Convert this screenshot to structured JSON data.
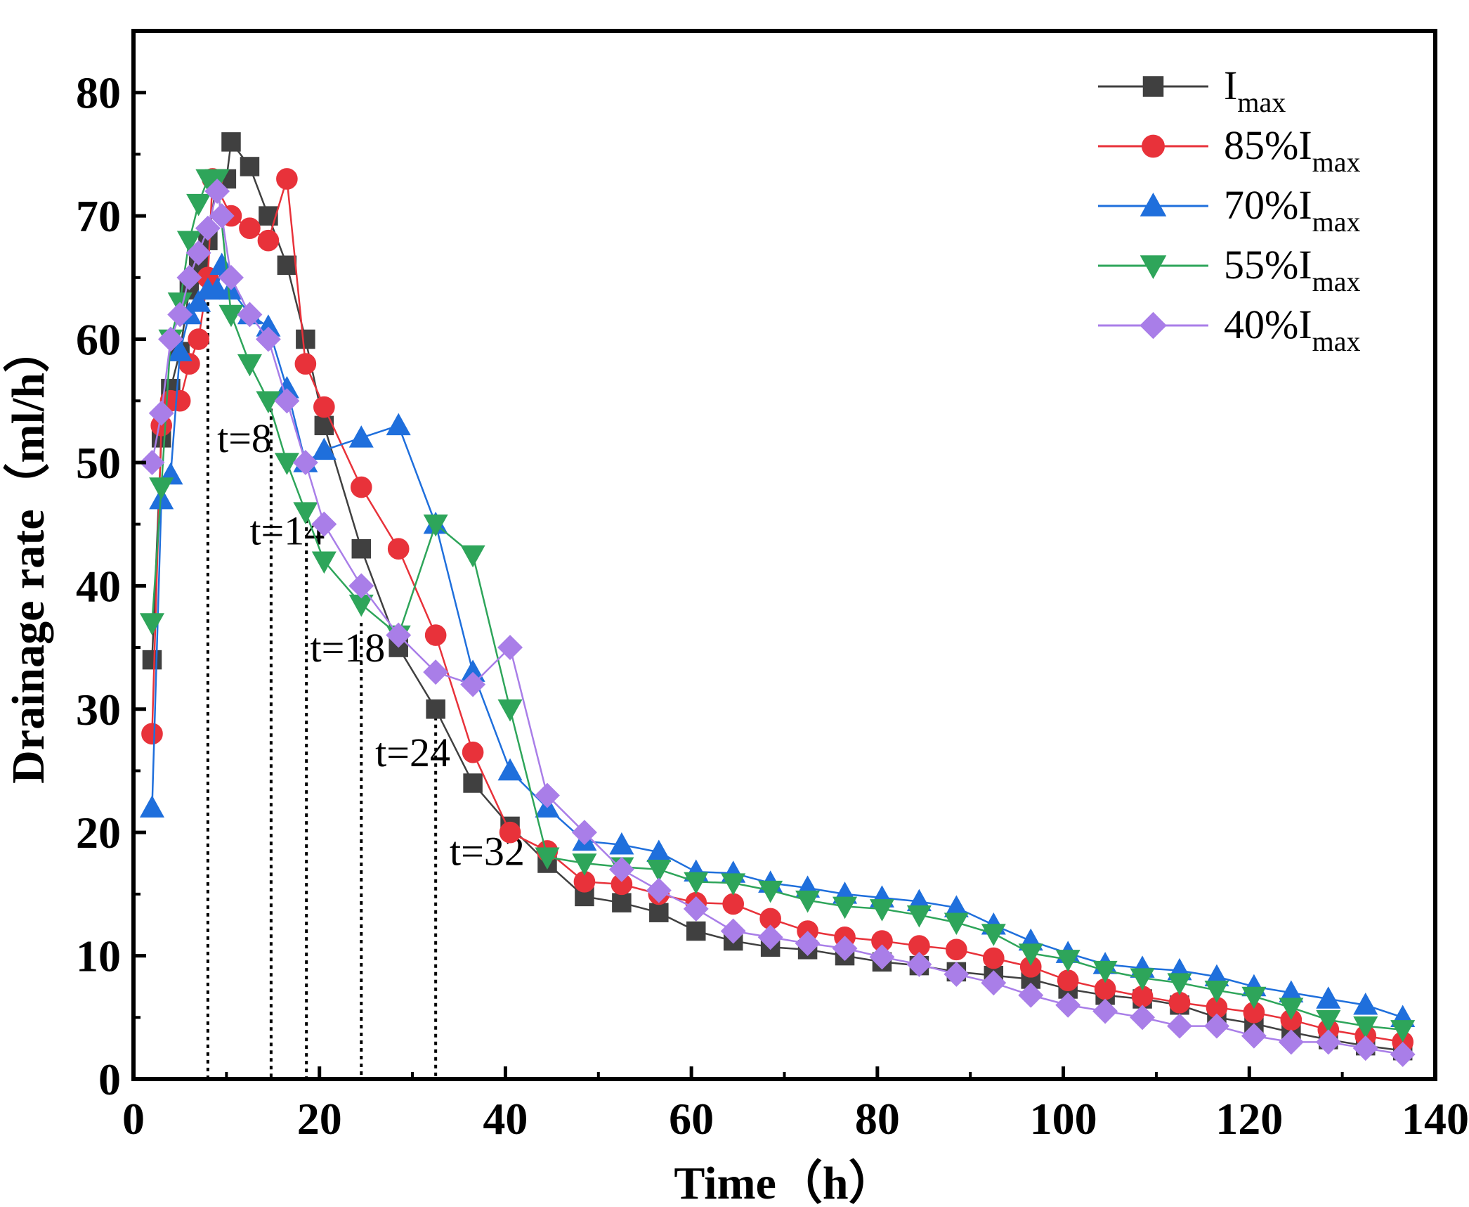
{
  "chart_data": {
    "type": "line",
    "xlabel": "Time（h）",
    "ylabel": "Drainage rate（ml/h）",
    "xlim": [
      0,
      140
    ],
    "ylim": [
      0,
      85
    ],
    "xticks": [
      0,
      20,
      40,
      60,
      80,
      100,
      120,
      140
    ],
    "yticks": [
      0,
      10,
      20,
      30,
      40,
      50,
      60,
      70,
      80
    ],
    "grid": false,
    "legend_position": "top-right",
    "series": [
      {
        "name": "I",
        "name_sub": "max",
        "color": "#404040",
        "marker": "square",
        "points": [
          [
            2,
            34
          ],
          [
            3,
            52
          ],
          [
            4,
            56
          ],
          [
            5,
            59
          ],
          [
            6,
            64
          ],
          [
            7,
            66
          ],
          [
            8,
            68
          ],
          [
            9,
            73
          ],
          [
            10,
            73
          ],
          [
            10.5,
            76
          ],
          [
            12.5,
            74
          ],
          [
            14.5,
            70
          ],
          [
            16.5,
            66
          ],
          [
            18.5,
            60
          ],
          [
            20.5,
            53
          ],
          [
            24.5,
            43
          ],
          [
            28.5,
            35
          ],
          [
            32.5,
            30
          ],
          [
            36.5,
            24
          ],
          [
            40.5,
            20.5
          ],
          [
            44.5,
            17.5
          ],
          [
            48.5,
            14.8
          ],
          [
            52.5,
            14.3
          ],
          [
            56.5,
            13.5
          ],
          [
            60.5,
            12
          ],
          [
            64.5,
            11.2
          ],
          [
            68.5,
            10.7
          ],
          [
            72.5,
            10.5
          ],
          [
            76.5,
            10
          ],
          [
            80.5,
            9.5
          ],
          [
            84.5,
            9.2
          ],
          [
            88.5,
            8.7
          ],
          [
            92.5,
            8.4
          ],
          [
            96.5,
            8.1
          ],
          [
            100.5,
            7.3
          ],
          [
            104.5,
            6.8
          ],
          [
            108.5,
            6.5
          ],
          [
            112.5,
            6
          ],
          [
            116.5,
            5
          ],
          [
            120.5,
            4.5
          ],
          [
            124.5,
            3.8
          ],
          [
            128.5,
            3.2
          ],
          [
            132.5,
            2.7
          ],
          [
            136.5,
            2.3
          ]
        ]
      },
      {
        "name": "85%I",
        "name_sub": "max",
        "color": "#e8323a",
        "marker": "circle",
        "points": [
          [
            2,
            28
          ],
          [
            3,
            53
          ],
          [
            4,
            55
          ],
          [
            5,
            55
          ],
          [
            6,
            58
          ],
          [
            7,
            60
          ],
          [
            8,
            65
          ],
          [
            8.5,
            73
          ],
          [
            10.5,
            70
          ],
          [
            12.5,
            69
          ],
          [
            14.5,
            68
          ],
          [
            16.5,
            73
          ],
          [
            18.5,
            58
          ],
          [
            20.5,
            54.5
          ],
          [
            24.5,
            48
          ],
          [
            28.5,
            43
          ],
          [
            32.5,
            36
          ],
          [
            36.5,
            26.5
          ],
          [
            40.5,
            20
          ],
          [
            44.5,
            18.5
          ],
          [
            48.5,
            16
          ],
          [
            52.5,
            15.8
          ],
          [
            56.5,
            15
          ],
          [
            60.5,
            14.3
          ],
          [
            64.5,
            14.2
          ],
          [
            68.5,
            13
          ],
          [
            72.5,
            12
          ],
          [
            76.5,
            11.5
          ],
          [
            80.5,
            11.2
          ],
          [
            84.5,
            10.8
          ],
          [
            88.5,
            10.5
          ],
          [
            92.5,
            9.8
          ],
          [
            96.5,
            9.1
          ],
          [
            100.5,
            8
          ],
          [
            104.5,
            7.3
          ],
          [
            108.5,
            6.7
          ],
          [
            112.5,
            6.2
          ],
          [
            116.5,
            5.8
          ],
          [
            120.5,
            5.4
          ],
          [
            124.5,
            4.8
          ],
          [
            128.5,
            4
          ],
          [
            132.5,
            3.5
          ],
          [
            136.5,
            3
          ]
        ]
      },
      {
        "name": "70%I",
        "name_sub": "max",
        "color": "#1f6fdc",
        "marker": "triangle-up",
        "points": [
          [
            2,
            22
          ],
          [
            3,
            47
          ],
          [
            4,
            49
          ],
          [
            5,
            59
          ],
          [
            6,
            62
          ],
          [
            7,
            63
          ],
          [
            8,
            64
          ],
          [
            9,
            64
          ],
          [
            9.5,
            66
          ],
          [
            10.5,
            64
          ],
          [
            12.5,
            62
          ],
          [
            14.5,
            61
          ],
          [
            16.5,
            56
          ],
          [
            18.5,
            50
          ],
          [
            20.5,
            51
          ],
          [
            24.5,
            52
          ],
          [
            28.5,
            53
          ],
          [
            32.5,
            45
          ],
          [
            36.5,
            33
          ],
          [
            40.5,
            25
          ],
          [
            44.5,
            22
          ],
          [
            48.5,
            19.3
          ],
          [
            52.5,
            19
          ],
          [
            56.5,
            18.4
          ],
          [
            60.5,
            16.8
          ],
          [
            64.5,
            16.7
          ],
          [
            68.5,
            15.9
          ],
          [
            72.5,
            15.5
          ],
          [
            76.5,
            15
          ],
          [
            80.5,
            14.7
          ],
          [
            84.5,
            14.4
          ],
          [
            88.5,
            13.9
          ],
          [
            92.5,
            12.5
          ],
          [
            96.5,
            11.2
          ],
          [
            100.5,
            10.2
          ],
          [
            104.5,
            9.3
          ],
          [
            108.5,
            9
          ],
          [
            112.5,
            8.8
          ],
          [
            116.5,
            8.3
          ],
          [
            120.5,
            7.5
          ],
          [
            124.5,
            7
          ],
          [
            128.5,
            6.5
          ],
          [
            132.5,
            6
          ],
          [
            136.5,
            5
          ]
        ]
      },
      {
        "name": "55%I",
        "name_sub": "max",
        "color": "#2ea55a",
        "marker": "triangle-down",
        "points": [
          [
            2,
            37
          ],
          [
            3,
            48
          ],
          [
            4,
            60
          ],
          [
            5,
            63
          ],
          [
            6,
            68
          ],
          [
            7,
            71
          ],
          [
            8,
            73
          ],
          [
            9,
            73
          ],
          [
            10.5,
            62
          ],
          [
            12.5,
            58
          ],
          [
            14.5,
            55
          ],
          [
            16.5,
            50
          ],
          [
            18.5,
            46
          ],
          [
            20.5,
            42
          ],
          [
            24.5,
            38.5
          ],
          [
            28.5,
            36
          ],
          [
            32.5,
            45
          ],
          [
            36.5,
            42.5
          ],
          [
            40.5,
            30
          ],
          [
            44.5,
            18
          ],
          [
            48.5,
            17.5
          ],
          [
            52.5,
            17.2
          ],
          [
            56.5,
            17
          ],
          [
            60.5,
            16
          ],
          [
            64.5,
            15.9
          ],
          [
            68.5,
            15.3
          ],
          [
            72.5,
            14.5
          ],
          [
            76.5,
            14
          ],
          [
            80.5,
            13.8
          ],
          [
            84.5,
            13.3
          ],
          [
            88.5,
            12.7
          ],
          [
            92.5,
            11.8
          ],
          [
            96.5,
            10.2
          ],
          [
            100.5,
            9.7
          ],
          [
            104.5,
            8.8
          ],
          [
            108.5,
            8.2
          ],
          [
            112.5,
            7.8
          ],
          [
            116.5,
            7.2
          ],
          [
            120.5,
            6.7
          ],
          [
            124.5,
            5.8
          ],
          [
            128.5,
            4.8
          ],
          [
            132.5,
            4.3
          ],
          [
            136.5,
            4
          ]
        ]
      },
      {
        "name": "40%I",
        "name_sub": "max",
        "color": "#a97ee8",
        "marker": "diamond",
        "points": [
          [
            2,
            50
          ],
          [
            3,
            54
          ],
          [
            4,
            60
          ],
          [
            5,
            62
          ],
          [
            6,
            65
          ],
          [
            7,
            67
          ],
          [
            8,
            69
          ],
          [
            9,
            72
          ],
          [
            9.5,
            70
          ],
          [
            10.5,
            65
          ],
          [
            12.5,
            62
          ],
          [
            14.5,
            60
          ],
          [
            16.5,
            55
          ],
          [
            18.5,
            50
          ],
          [
            20.5,
            45
          ],
          [
            24.5,
            40
          ],
          [
            28.5,
            36
          ],
          [
            32.5,
            33
          ],
          [
            36.5,
            32
          ],
          [
            40.5,
            35
          ],
          [
            44.5,
            23
          ],
          [
            48.5,
            20
          ],
          [
            52.5,
            17
          ],
          [
            56.5,
            15.3
          ],
          [
            60.5,
            13.8
          ],
          [
            64.5,
            12
          ],
          [
            68.5,
            11.5
          ],
          [
            72.5,
            11
          ],
          [
            76.5,
            10.6
          ],
          [
            80.5,
            9.9
          ],
          [
            84.5,
            9.3
          ],
          [
            88.5,
            8.5
          ],
          [
            92.5,
            7.8
          ],
          [
            96.5,
            6.8
          ],
          [
            100.5,
            6
          ],
          [
            104.5,
            5.5
          ],
          [
            108.5,
            5
          ],
          [
            112.5,
            4.3
          ],
          [
            116.5,
            4.3
          ],
          [
            120.5,
            3.5
          ],
          [
            124.5,
            3
          ],
          [
            128.5,
            3
          ],
          [
            132.5,
            2.5
          ],
          [
            136.5,
            2
          ]
        ]
      }
    ],
    "annotations": [
      {
        "text": "t=8",
        "x": 8,
        "y_top": 63,
        "label_x": 9,
        "label_y": 52
      },
      {
        "text": "t=14",
        "x": 14.8,
        "y_top": 55,
        "label_x": 12.5,
        "label_y": 44.5
      },
      {
        "text": "t=18",
        "x": 18.6,
        "y_top": 46,
        "label_x": 19,
        "label_y": 35
      },
      {
        "text": "t=24",
        "x": 24.5,
        "y_top": 37,
        "label_x": 26,
        "label_y": 26.5
      },
      {
        "text": "t=32",
        "x": 32.5,
        "y_top": 30,
        "label_x": 34,
        "label_y": 18.5
      }
    ]
  }
}
